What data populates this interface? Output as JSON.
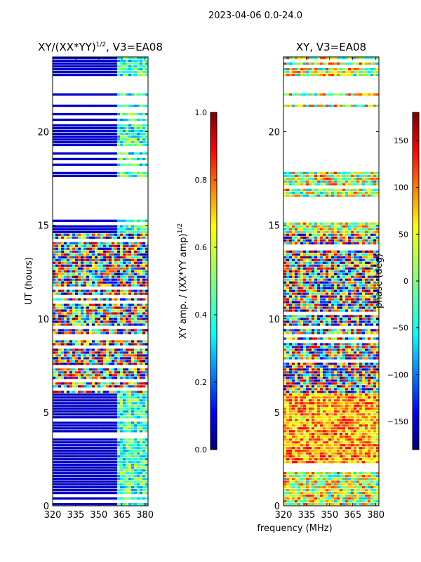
{
  "suptitle": "2023-04-06 0.0-24.0",
  "shared_xlabel": "frequency (MHz)",
  "colors": {
    "background": "#ffffff",
    "jet": [
      "#00007f",
      "#0000ff",
      "#007fff",
      "#00ffff",
      "#7fff7f",
      "#ffff00",
      "#ff7f00",
      "#ff0000",
      "#7f0000"
    ]
  },
  "chart_data": [
    {
      "type": "heatmap",
      "title": "XY/(XX*YY)",
      "title_exp": "1/2",
      "title_suffix": ", V3=EA08",
      "xlabel": "frequency (MHz)",
      "ylabel": "UT (hours)",
      "x_range": [
        320,
        382
      ],
      "x_ticks": [
        320,
        335,
        350,
        365,
        380
      ],
      "y_range": [
        0,
        24
      ],
      "y_ticks": [
        0,
        5,
        10,
        15,
        20
      ],
      "colorbar": {
        "label": "XY amp. / (XX*YY amp)",
        "label_exp": "1/2",
        "range": [
          0.0,
          1.0
        ],
        "ticks": [
          "0.0",
          "0.2",
          "0.4",
          "0.6",
          "0.8",
          "1.0"
        ]
      },
      "data_gaps_hours": [
        [
          15.3,
          17.6
        ],
        [
          21.4,
          21.9
        ],
        [
          22.1,
          22.9
        ]
      ],
      "noisy_interval_hours": [
        6.0,
        14.5
      ],
      "quiet_value": 0.05
    },
    {
      "type": "heatmap",
      "title": "XY",
      "title_suffix": ", V3=EA08",
      "xlabel": "frequency (MHz)",
      "ylabel": "",
      "x_range": [
        320,
        382
      ],
      "x_ticks": [
        320,
        335,
        350,
        365,
        380
      ],
      "y_range": [
        0,
        24
      ],
      "y_ticks": [
        0,
        5,
        10,
        15,
        20
      ],
      "colorbar": {
        "label": "phase (deg)",
        "range": [
          -180,
          180
        ],
        "ticks": [
          "-150",
          "-100",
          "-50",
          "0",
          "50",
          "100",
          "150"
        ]
      },
      "data_gaps_hours": [
        [
          15.3,
          16.5
        ],
        [
          17.8,
          21.3
        ],
        [
          21.6,
          21.9
        ],
        [
          22.1,
          22.9
        ]
      ],
      "noisy_interval_hours": [
        6.0,
        14.5
      ]
    }
  ]
}
